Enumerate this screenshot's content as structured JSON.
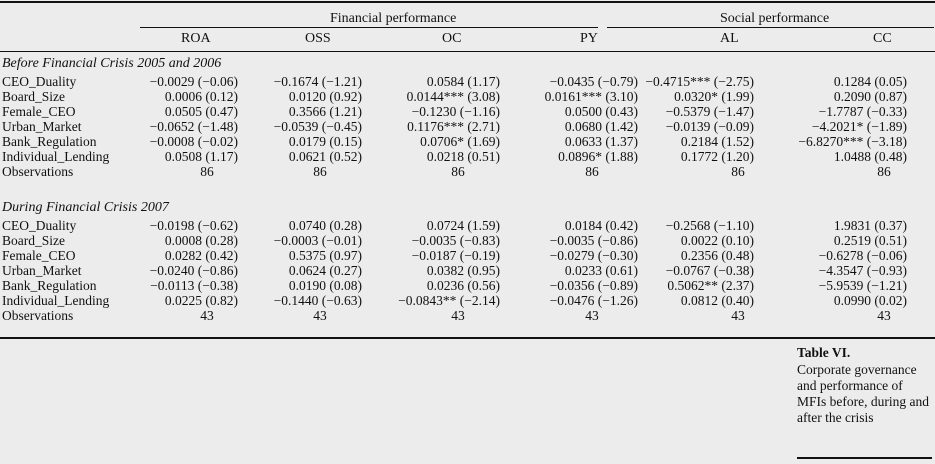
{
  "groups": {
    "financial": "Financial performance",
    "social": "Social performance"
  },
  "columns": [
    "ROA",
    "OSS",
    "OC",
    "PY",
    "AL",
    "CC"
  ],
  "sections": [
    {
      "title": "Before Financial Crisis 2005 and 2006",
      "rows": [
        {
          "label": "CEO_Duality",
          "cells": [
            "−0.0029 (−0.06)",
            "−0.1674 (−1.21)",
            "0.0584 (1.17)",
            "−0.0435 (−0.79)",
            "−0.4715*** (−2.75)",
            "0.1284 (0.05)"
          ]
        },
        {
          "label": "Board_Size",
          "cells": [
            "0.0006 (0.12)",
            "0.0120 (0.92)",
            "0.0144*** (3.08)",
            "0.0161*** (3.10)",
            "0.0320* (1.99)",
            "0.2090 (0.87)"
          ]
        },
        {
          "label": "Female_CEO",
          "cells": [
            "0.0505 (0.47)",
            "0.3566 (1.21)",
            "−0.1230 (−1.16)",
            "0.0500 (0.43)",
            "−0.5379 (−1.47)",
            "−1.7787 (−0.33)"
          ]
        },
        {
          "label": "Urban_Market",
          "cells": [
            "−0.0652 (−1.48)",
            "−0.0539 (−0.45)",
            "0.1176*** (2.71)",
            "0.0680 (1.42)",
            "−0.0139 (−0.09)",
            "−4.2021* (−1.89)"
          ]
        },
        {
          "label": "Bank_Regulation",
          "cells": [
            "−0.0008 (−0.02)",
            "0.0179 (0.15)",
            "0.0706* (1.69)",
            "0.0633 (1.37)",
            "0.2184 (1.52)",
            "−6.8270*** (−3.18)"
          ]
        },
        {
          "label": "Individual_Lending",
          "cells": [
            "0.0508 (1.17)",
            "0.0621 (0.52)",
            "0.0218 (0.51)",
            "0.0896* (1.88)",
            "0.1772 (1.20)",
            "1.0488 (0.48)"
          ]
        },
        {
          "label": "Observations",
          "cells": [
            "86",
            "86",
            "86",
            "86",
            "86",
            "86"
          ]
        }
      ]
    },
    {
      "title": "During Financial Crisis 2007",
      "rows": [
        {
          "label": "CEO_Duality",
          "cells": [
            "−0.0198 (−0.62)",
            "0.0740 (0.28)",
            "0.0724 (1.59)",
            "0.0184 (0.42)",
            "−0.2568 (−1.10)",
            "1.9831 (0.37)"
          ]
        },
        {
          "label": "Board_Size",
          "cells": [
            "0.0008 (0.28)",
            "−0.0003 (−0.01)",
            "−0.0035 (−0.83)",
            "−0.0035 (−0.86)",
            "0.0022 (0.10)",
            "0.2519 (0.51)"
          ]
        },
        {
          "label": "Female_CEO",
          "cells": [
            "0.0282 (0.42)",
            "0.5375 (0.97)",
            "−0.0187 (−0.19)",
            "−0.0279 (−0.30)",
            "0.2356 (0.48)",
            "−0.6278 (−0.06)"
          ]
        },
        {
          "label": "Urban_Market",
          "cells": [
            "−0.0240 (−0.86)",
            "0.0624 (0.27)",
            "0.0382 (0.95)",
            "0.0233 (0.61)",
            "−0.0767 (−0.38)",
            "−4.3547 (−0.93)"
          ]
        },
        {
          "label": "Bank_Regulation",
          "cells": [
            "−0.0113 (−0.38)",
            "0.0190 (0.08)",
            "0.0236 (0.56)",
            "−0.0356 (−0.89)",
            "0.5062** (2.37)",
            "−5.9539 (−1.21)"
          ]
        },
        {
          "label": "Individual_Lending",
          "cells": [
            "0.0225 (0.82)",
            "−0.1440 (−0.63)",
            "−0.0843** (−2.14)",
            "−0.0476 (−1.26)",
            "0.0812 (0.40)",
            "0.0990 (0.02)"
          ]
        },
        {
          "label": "Observations",
          "cells": [
            "43",
            "43",
            "43",
            "43",
            "43",
            "43"
          ]
        }
      ]
    }
  ],
  "caption": {
    "title": "Table VI.",
    "text": "Corporate governance and performance of MFIs before, during and after the crisis"
  }
}
